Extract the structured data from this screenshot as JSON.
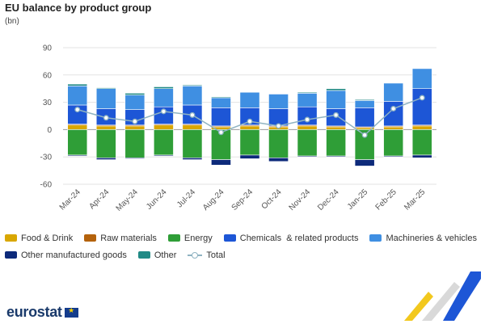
{
  "header": {
    "title": "EU balance by product group",
    "unit": "(bn)"
  },
  "footer": {
    "logo_text": "eurostat"
  },
  "colors": {
    "food": "#d9a700",
    "raw": "#b4620c",
    "energy": "#2f9e37",
    "chemicals": "#1d56d6",
    "machinery": "#3f8fe2",
    "other_manufactured": "#0d2a7a",
    "other": "#218a86",
    "total": "#8fb3c2"
  },
  "chart_data": {
    "type": "bar",
    "stacked": true,
    "title": "EU balance by product group",
    "ylabel": "(bn)",
    "ylim": [
      -60,
      90
    ],
    "yticks": [
      -60,
      -30,
      0,
      30,
      60,
      90
    ],
    "grid": true,
    "legend_position": "bottom",
    "categories": [
      "Mar-24",
      "Apr-24",
      "May-24",
      "Jun-24",
      "Jul-24",
      "Aug-24",
      "Sep-24",
      "Oct-24",
      "Nov-24",
      "Dec-24",
      "Jan-25",
      "Feb-25",
      "Mar-25"
    ],
    "series": [
      {
        "name": "Food & Drink",
        "key": "food",
        "values": [
          5,
          4,
          4,
          5,
          5,
          3,
          4,
          3,
          4,
          3,
          2,
          3,
          4
        ]
      },
      {
        "name": "Raw materials",
        "key": "raw",
        "values": [
          1,
          1,
          1,
          1,
          1,
          1,
          1,
          1,
          1,
          1,
          1,
          1,
          1
        ]
      },
      {
        "name": "Energy",
        "key": "energy",
        "values": [
          -28,
          -31,
          -31,
          -28,
          -31,
          -33,
          -28,
          -31,
          -29,
          -29,
          -33,
          -29,
          -28
        ]
      },
      {
        "name": "Chemicals  & related products",
        "key": "chemicals",
        "values": [
          21,
          18,
          17,
          19,
          21,
          20,
          19,
          19,
          20,
          19,
          21,
          27,
          40
        ]
      },
      {
        "name": "Machineries & vehicles",
        "key": "machinery",
        "values": [
          21,
          22,
          16,
          20,
          21,
          11,
          17,
          16,
          15,
          20,
          8,
          20,
          22
        ]
      },
      {
        "name": "Other manufactured goods",
        "key": "other_manufactured",
        "values": [
          -1,
          -2,
          -1,
          -1,
          -2,
          -6,
          -4,
          -4,
          -1,
          -1,
          -7,
          -1,
          -3
        ]
      },
      {
        "name": "Other",
        "key": "other",
        "values": [
          2,
          1,
          2,
          2,
          1,
          1,
          0,
          0,
          1,
          2,
          1,
          0,
          0
        ]
      }
    ],
    "total": {
      "name": "Total",
      "values": [
        22,
        13,
        9,
        20,
        16,
        -3,
        9,
        4,
        11,
        16,
        -6,
        23,
        35
      ]
    }
  }
}
